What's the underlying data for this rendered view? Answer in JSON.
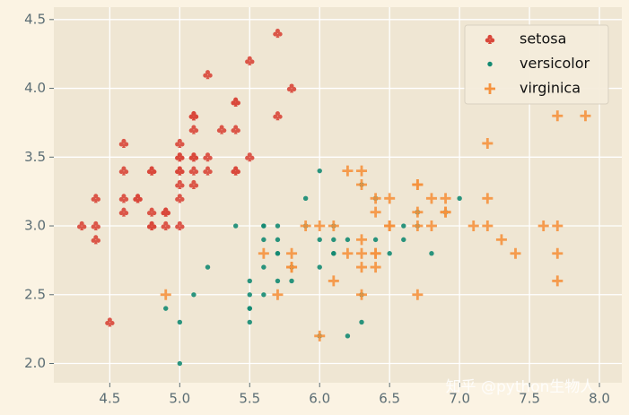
{
  "chart_data": {
    "type": "scatter",
    "xlim": [
      4.1,
      8.16
    ],
    "ylim": [
      1.86,
      4.59
    ],
    "xticks": [
      4.5,
      {
        "value": 5,
        "label": "5.0"
      },
      5.5,
      {
        "value": 6,
        "label": "6.0"
      },
      6.5,
      {
        "value": 7,
        "label": "7.0"
      },
      7.5,
      {
        "value": 8,
        "label": "8.0"
      }
    ],
    "yticks": [
      {
        "value": 2,
        "label": "2.0"
      },
      2.5,
      {
        "value": 3,
        "label": "3.0"
      },
      3.5,
      {
        "value": 4,
        "label": "4.0"
      },
      4.5
    ],
    "grid": true,
    "legend": "upper right",
    "watermark": "知乎 @python生物人",
    "series": [
      {
        "name": "setosa",
        "color": "#d9473a",
        "marker": "club",
        "x": [
          5.1,
          4.9,
          4.7,
          4.6,
          5.0,
          5.4,
          4.6,
          5.0,
          4.4,
          4.9,
          5.4,
          4.8,
          4.8,
          4.3,
          5.8,
          5.7,
          5.4,
          5.1,
          5.7,
          5.1,
          5.4,
          5.1,
          4.6,
          5.1,
          4.8,
          5.0,
          5.0,
          5.2,
          5.2,
          4.7,
          4.8,
          5.4,
          5.2,
          5.5,
          4.9,
          5.0,
          5.5,
          4.9,
          4.4,
          5.1,
          5.0,
          4.5,
          4.4,
          5.0,
          5.1,
          4.8,
          5.1,
          4.6,
          5.3,
          5.0
        ],
        "values": [
          3.5,
          3.0,
          3.2,
          3.1,
          3.6,
          3.9,
          3.4,
          3.4,
          2.9,
          3.1,
          3.7,
          3.4,
          3.0,
          3.0,
          4.0,
          4.4,
          3.9,
          3.5,
          3.8,
          3.8,
          3.4,
          3.7,
          3.6,
          3.3,
          3.4,
          3.0,
          3.4,
          3.5,
          3.4,
          3.2,
          3.1,
          3.4,
          4.1,
          4.2,
          3.1,
          3.2,
          3.5,
          3.1,
          3.0,
          3.4,
          3.5,
          2.3,
          3.2,
          3.5,
          3.8,
          3.0,
          3.8,
          3.2,
          3.7,
          3.3
        ]
      },
      {
        "name": "versicolor",
        "color": "#138a72",
        "marker": "circle",
        "x": [
          7.0,
          6.4,
          6.9,
          5.5,
          6.5,
          5.7,
          6.3,
          4.9,
          6.6,
          5.2,
          5.0,
          5.9,
          6.0,
          6.1,
          5.6,
          6.7,
          5.6,
          5.8,
          6.2,
          5.6,
          5.9,
          6.1,
          6.3,
          6.1,
          6.4,
          6.6,
          6.8,
          6.7,
          6.0,
          5.7,
          5.5,
          5.5,
          5.8,
          6.0,
          5.4,
          6.0,
          6.7,
          6.3,
          5.6,
          5.5,
          5.5,
          6.1,
          5.8,
          5.0,
          5.6,
          5.7,
          5.7,
          6.2,
          5.1,
          5.7
        ],
        "values": [
          3.2,
          3.2,
          3.1,
          2.3,
          2.8,
          2.8,
          3.3,
          2.4,
          2.9,
          2.7,
          2.0,
          3.0,
          2.2,
          2.9,
          2.9,
          3.1,
          3.0,
          2.7,
          2.2,
          2.5,
          3.2,
          2.8,
          2.5,
          2.8,
          2.9,
          3.0,
          2.8,
          3.0,
          2.9,
          2.6,
          2.4,
          2.4,
          2.7,
          2.7,
          3.0,
          3.4,
          3.1,
          2.3,
          3.0,
          2.5,
          2.6,
          3.0,
          2.6,
          2.3,
          2.7,
          3.0,
          2.9,
          2.9,
          2.5,
          2.8
        ]
      },
      {
        "name": "virginica",
        "color": "#f5923e",
        "marker": "plus",
        "x": [
          6.3,
          5.8,
          7.1,
          6.3,
          6.5,
          7.6,
          4.9,
          7.3,
          6.7,
          7.2,
          6.5,
          6.4,
          6.8,
          5.7,
          5.8,
          6.4,
          6.5,
          7.7,
          7.7,
          6.0,
          6.9,
          5.6,
          7.7,
          6.3,
          6.7,
          7.2,
          6.2,
          6.1,
          6.4,
          7.2,
          7.4,
          7.9,
          6.4,
          6.3,
          6.1,
          7.7,
          6.3,
          6.4,
          6.0,
          6.9,
          6.7,
          6.9,
          5.8,
          6.8,
          6.7,
          6.7,
          6.3,
          6.5,
          6.2,
          5.9
        ],
        "values": [
          3.3,
          2.7,
          3.0,
          2.9,
          3.0,
          3.0,
          2.5,
          2.9,
          2.5,
          3.6,
          3.2,
          2.7,
          3.0,
          2.5,
          2.8,
          3.2,
          3.0,
          3.8,
          2.6,
          2.2,
          3.2,
          2.8,
          2.8,
          2.7,
          3.3,
          3.2,
          2.8,
          3.0,
          2.8,
          3.0,
          2.8,
          3.8,
          2.8,
          2.8,
          2.6,
          3.0,
          3.4,
          3.1,
          3.0,
          3.1,
          3.1,
          3.1,
          2.7,
          3.2,
          3.3,
          3.0,
          2.5,
          3.0,
          3.4,
          3.0
        ]
      }
    ]
  }
}
